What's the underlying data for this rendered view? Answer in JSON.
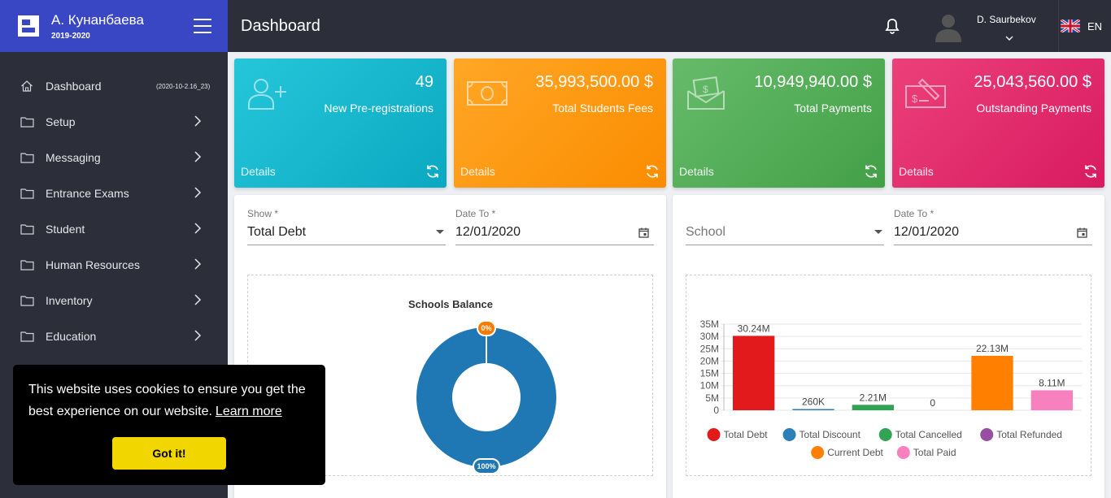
{
  "brand": {
    "name": "А. Кунанбаева",
    "year": "2019-2020"
  },
  "header": {
    "title": "Dashboard",
    "user_name": "D. Saurbekov",
    "language": "EN"
  },
  "sidebar": {
    "items": [
      {
        "label": "Dashboard",
        "icon": "home-icon",
        "version": "(2020-10-2.16_23)"
      },
      {
        "label": "Setup",
        "icon": "folder-icon"
      },
      {
        "label": "Messaging",
        "icon": "folder-icon"
      },
      {
        "label": "Entrance Exams",
        "icon": "folder-icon"
      },
      {
        "label": "Student",
        "icon": "folder-icon"
      },
      {
        "label": "Human Resources",
        "icon": "folder-icon"
      },
      {
        "label": "Inventory",
        "icon": "folder-icon"
      },
      {
        "label": "Education",
        "icon": "folder-icon"
      }
    ]
  },
  "cards": [
    {
      "value": "49",
      "label": "New Pre-registrations",
      "details": "Details",
      "icon": "add-user-icon",
      "color": "#1ab8d0"
    },
    {
      "value": "35,993,500.00 $",
      "label": "Total Students Fees",
      "details": "Details",
      "icon": "banknote-icon",
      "color": "#fb9514"
    },
    {
      "value": "10,949,940.00 $",
      "label": "Total Payments",
      "details": "Details",
      "icon": "money-envelope-icon",
      "color": "#55b059"
    },
    {
      "value": "25,043,560.00 $",
      "label": "Outstanding Payments",
      "details": "Details",
      "icon": "check-pen-icon",
      "color": "#e2306d"
    }
  ],
  "left_panel": {
    "show_label": "Show *",
    "show_value": "Total Debt",
    "date_label": "Date To *",
    "date_value": "12/01/2020"
  },
  "right_panel": {
    "school_placeholder": "School",
    "date_label": "Date To *",
    "date_value": "12/01/2020"
  },
  "cookie": {
    "message": "This website uses cookies to ensure you get the best experience on our website.",
    "link": "Learn more",
    "button": "Got it!"
  },
  "chart_data": [
    {
      "type": "pie",
      "title": "Schools Balance",
      "slices": [
        {
          "label": "0%",
          "value": 0
        },
        {
          "label": "100%",
          "value": 100
        }
      ],
      "colors": [
        "#f57c00",
        "#1f77b4"
      ]
    },
    {
      "type": "bar",
      "categories": [
        "Total Debt",
        "Total Discount",
        "Total Cancelled",
        "Total Refunded",
        "Current Debt",
        "Total Paid"
      ],
      "values": [
        30240000,
        260000,
        2210000,
        0,
        22130000,
        8110000
      ],
      "data_labels": [
        "30.24M",
        "260K",
        "2.21M",
        "0",
        "22.13M",
        "8.11M"
      ],
      "colors": [
        "#e31a1c",
        "#2c7fb8",
        "#31a354",
        "#984ea3",
        "#ff7f00",
        "#f781bf"
      ],
      "yticks": [
        "0",
        "5M",
        "10M",
        "15M",
        "20M",
        "25M",
        "30M",
        "35M"
      ],
      "ylim": [
        0,
        35000000
      ],
      "grid": true,
      "legend": "bottom"
    }
  ]
}
